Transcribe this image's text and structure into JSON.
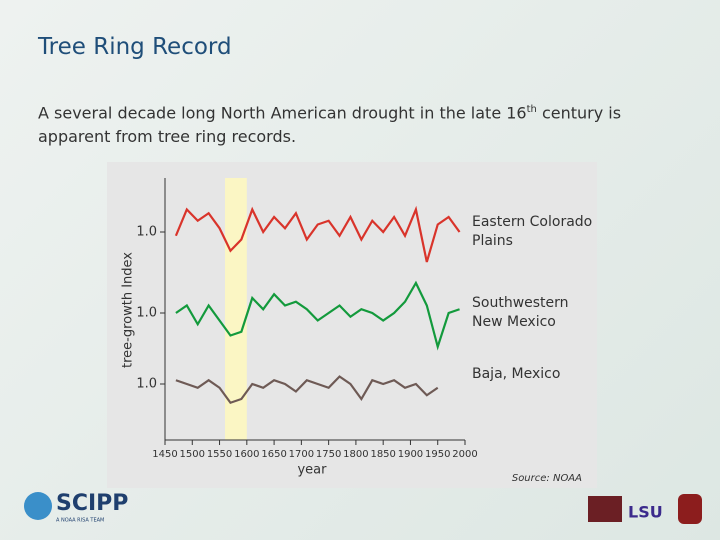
{
  "title": "Tree Ring Record",
  "body": {
    "before": "A several decade long North American drought in the late 16",
    "sup": "th",
    "after": " century is apparent from tree ring records."
  },
  "source": "Source: NOAA",
  "logos": {
    "scipp": "SCIPP",
    "scipp_tagline": "A NOAA RISA TEAM",
    "lsu": "LSU"
  },
  "chart_data": [
    {
      "type": "line",
      "y_label": "tree-growth Index",
      "highlight": [
        1560,
        1600
      ],
      "x": [
        1470,
        1490,
        1510,
        1530,
        1550,
        1570,
        1590,
        1610,
        1630,
        1650,
        1670,
        1690,
        1710,
        1730,
        1750,
        1770,
        1790,
        1810,
        1830,
        1850,
        1870,
        1890,
        1910,
        1930,
        1950,
        1970,
        1990
      ],
      "series": [
        {
          "name": "Eastern Colorado Plains",
          "color": "#d9342b",
          "values": [
            0.95,
            1.3,
            1.15,
            1.25,
            1.05,
            0.75,
            0.9,
            1.3,
            1.0,
            1.2,
            1.05,
            1.25,
            0.9,
            1.1,
            1.15,
            0.95,
            1.2,
            0.9,
            1.15,
            1.0,
            1.2,
            0.95,
            1.3,
            0.6,
            1.1,
            1.2,
            1.0
          ]
        }
      ],
      "xlim": [
        1450,
        2000
      ],
      "ylim": [
        0.4,
        1.6
      ],
      "yticks": [
        {
          "value": 1,
          "label": "1.0"
        }
      ]
    },
    {
      "type": "line",
      "x": [
        1470,
        1490,
        1510,
        1530,
        1550,
        1570,
        1590,
        1610,
        1630,
        1650,
        1670,
        1690,
        1710,
        1730,
        1750,
        1770,
        1790,
        1810,
        1830,
        1850,
        1870,
        1890,
        1910,
        1930,
        1950,
        1970,
        1990
      ],
      "series": [
        {
          "name": "Southwestern New Mexico",
          "color": "#139a3c",
          "values": [
            1.0,
            1.1,
            0.85,
            1.1,
            0.9,
            0.7,
            0.75,
            1.2,
            1.05,
            1.25,
            1.1,
            1.15,
            1.05,
            0.9,
            1.0,
            1.1,
            0.95,
            1.05,
            1.0,
            0.9,
            1.0,
            1.15,
            1.4,
            1.1,
            0.55,
            1.0,
            1.05
          ]
        }
      ],
      "xlim": [
        1450,
        2000
      ],
      "ylim": [
        0.4,
        1.6
      ],
      "yticks": [
        {
          "value": 1,
          "label": "1.0"
        }
      ]
    },
    {
      "type": "line",
      "x_label": "year",
      "x": [
        1470,
        1490,
        1510,
        1530,
        1550,
        1570,
        1590,
        1610,
        1630,
        1650,
        1670,
        1690,
        1710,
        1730,
        1750,
        1770,
        1790,
        1810,
        1830,
        1850,
        1870,
        1890,
        1910,
        1930,
        1950,
        1970,
        1990
      ],
      "series": [
        {
          "name": "Baja, Mexico",
          "color": "#6e5a55",
          "values": [
            1.05,
            1.0,
            0.95,
            1.05,
            0.95,
            0.75,
            0.8,
            1.0,
            0.95,
            1.05,
            1.0,
            0.9,
            1.05,
            1.0,
            0.95,
            1.1,
            1.0,
            0.8,
            1.05,
            1.0,
            1.05,
            0.95,
            1.0,
            0.85,
            0.95,
            null,
            null
          ]
        }
      ],
      "xlim": [
        1450,
        2000
      ],
      "ylim": [
        0.4,
        1.6
      ],
      "yticks": [
        {
          "value": 1,
          "label": "1.0"
        }
      ],
      "xticks": [
        1450,
        1500,
        1550,
        1600,
        1650,
        1700,
        1750,
        1800,
        1850,
        1900,
        1950,
        2000
      ]
    }
  ]
}
